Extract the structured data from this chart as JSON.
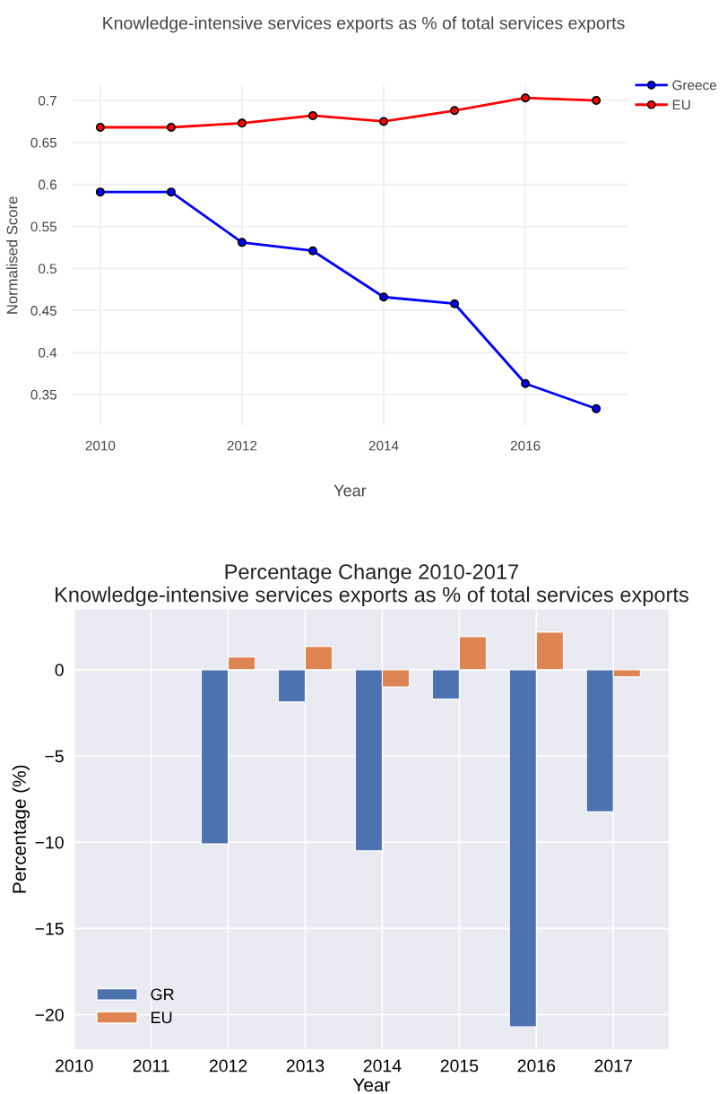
{
  "chart_data": [
    {
      "type": "line",
      "title": "Knowledge-intensive services exports as % of total services exports",
      "xlabel": "Year",
      "ylabel": "Normalised Score",
      "x": [
        2010,
        2011,
        2012,
        2013,
        2014,
        2015,
        2016,
        2017
      ],
      "series": [
        {
          "name": "Greece",
          "color": "#0000ff",
          "values": [
            0.591,
            0.591,
            0.531,
            0.521,
            0.466,
            0.458,
            0.363,
            0.333
          ]
        },
        {
          "name": "EU",
          "color": "#ff0000",
          "values": [
            0.668,
            0.668,
            0.673,
            0.682,
            0.675,
            0.688,
            0.703,
            0.7
          ]
        }
      ],
      "xlim": [
        2009.6,
        2017.45
      ],
      "xticks": [
        2010,
        2012,
        2014,
        2016
      ],
      "ylim": [
        0.313,
        0.718
      ],
      "yticks": [
        0.35,
        0.4,
        0.45,
        0.5,
        0.55,
        0.6,
        0.65,
        0.7
      ],
      "grid": true,
      "legend": "top right",
      "marker": "circle",
      "line_style": "solid"
    },
    {
      "type": "bar",
      "title": "Percentage Change 2010-2017\nKnowledge-intensive services exports as % of total services exports",
      "xlabel": "Year",
      "ylabel": "Percentage (%)",
      "x": [
        2012,
        2013,
        2014,
        2015,
        2016,
        2017
      ],
      "series": [
        {
          "name": "GR",
          "color": "#4c72b0",
          "values": [
            -10.1,
            -1.87,
            -10.5,
            -1.7,
            -20.7,
            -8.24
          ]
        },
        {
          "name": "EU",
          "color": "#dd8452",
          "values": [
            0.73,
            1.35,
            -1.0,
            1.92,
            2.18,
            -0.41
          ]
        }
      ],
      "xlim": [
        2010,
        2017.72
      ],
      "xticks": [
        2010,
        2011,
        2012,
        2013,
        2014,
        2015,
        2016,
        2017
      ],
      "ylim": [
        -22,
        3.5
      ],
      "yticks": [
        {
          "value": -20,
          "label": "−20"
        },
        {
          "value": -15,
          "label": "−15"
        },
        {
          "value": -10,
          "label": "−10"
        },
        {
          "value": -5,
          "label": "−5"
        },
        0
      ],
      "grid": true,
      "legend": "bottom left"
    }
  ]
}
